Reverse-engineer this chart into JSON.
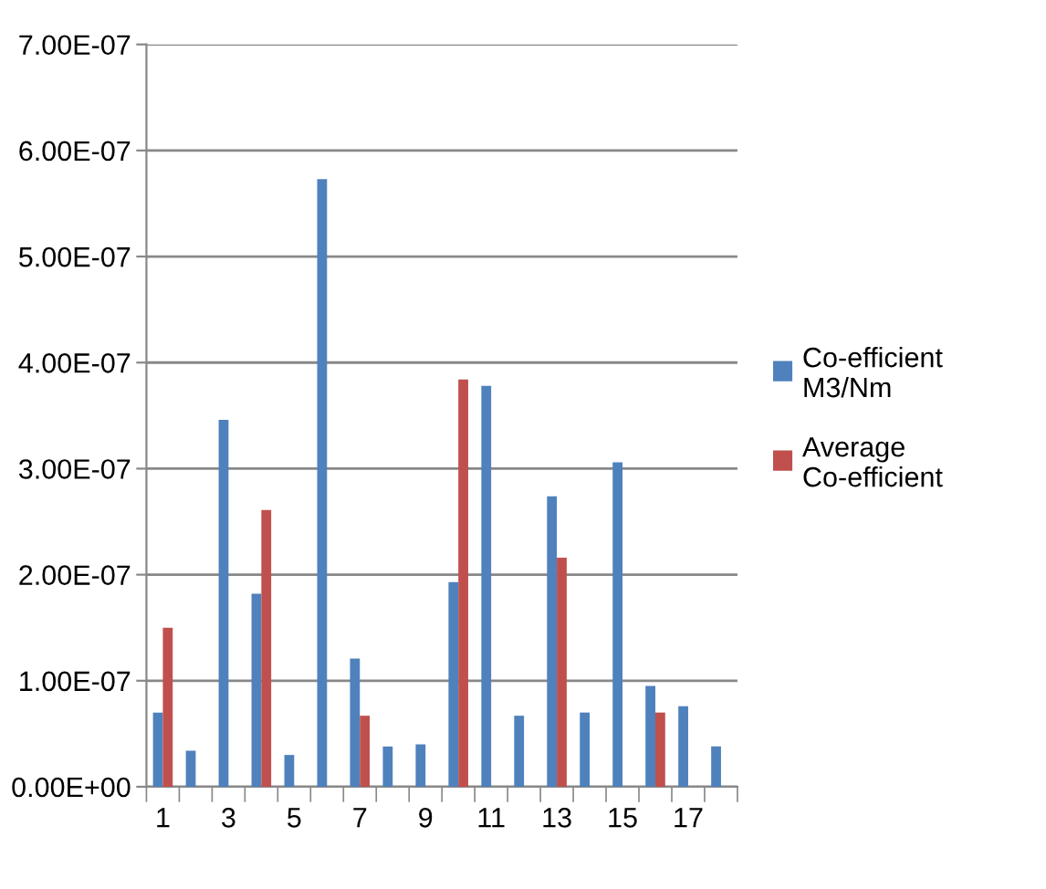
{
  "chart_data": {
    "type": "bar",
    "categories": [
      "1",
      null,
      "3",
      null,
      "5",
      null,
      "7",
      null,
      "9",
      null,
      "11",
      null,
      "13",
      null,
      "15",
      null,
      "17",
      null
    ],
    "series": [
      {
        "name": "Co-efficient M3/Nm",
        "color": "#4f81bd",
        "values": [
          7e-08,
          3.4e-08,
          3.46e-07,
          1.82e-07,
          3e-08,
          5.73e-07,
          1.21e-07,
          3.8e-08,
          4e-08,
          1.93e-07,
          3.78e-07,
          6.7e-08,
          2.74e-07,
          7e-08,
          3.06e-07,
          9.5e-08,
          7.6e-08,
          3.8e-08
        ]
      },
      {
        "name": "Average Co-efficient",
        "color": "#c0504d",
        "values": [
          1.5e-07,
          null,
          null,
          2.61e-07,
          null,
          null,
          6.7e-08,
          null,
          null,
          3.84e-07,
          null,
          null,
          2.16e-07,
          null,
          null,
          7e-08,
          null,
          null
        ]
      }
    ],
    "ylim": [
      0,
      7e-07
    ],
    "yticks": [
      {
        "value": 0,
        "label": "0.00E+00"
      },
      {
        "value": 1e-07,
        "label": "1.00E-07"
      },
      {
        "value": 2e-07,
        "label": "2.00E-07"
      },
      {
        "value": 3e-07,
        "label": "3.00E-07"
      },
      {
        "value": 4e-07,
        "label": "4.00E-07"
      },
      {
        "value": 5e-07,
        "label": "5.00E-07"
      },
      {
        "value": 6e-07,
        "label": "6.00E-07"
      },
      {
        "value": 7e-07,
        "label": "7.00E-07"
      }
    ],
    "grid": "y",
    "legend": "right"
  }
}
